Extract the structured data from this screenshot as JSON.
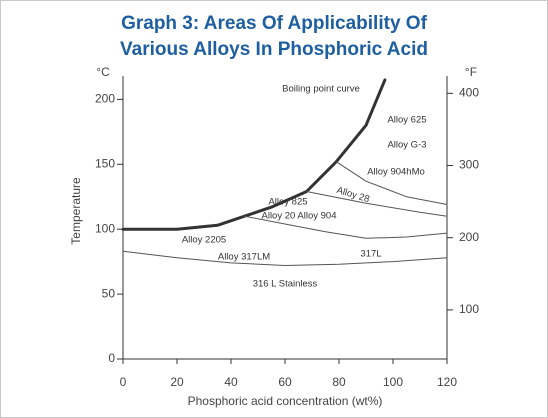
{
  "chart_data": {
    "type": "line",
    "title": "Graph 3: Areas Of Applicability Of Various Alloys In Phosphoric Acid",
    "xlabel": "Phosphoric acid concentration (wt%)",
    "ylabel": "Temperature",
    "y_unit": "°C",
    "y2_unit": "°F",
    "xlim": [
      0,
      120
    ],
    "xticks": [
      0,
      20,
      40,
      60,
      80,
      100,
      120
    ],
    "ylim": [
      0,
      218
    ],
    "yticks": [
      0,
      50,
      100,
      150,
      200
    ],
    "y2lim": [
      32,
      424
    ],
    "y2ticks": [
      100,
      200,
      300,
      400
    ],
    "series": [
      {
        "color": "#333333",
        "line_width": 3,
        "x": [
          0,
          20,
          35,
          45,
          55,
          68,
          79,
          90,
          97
        ],
        "values": [
          100,
          100,
          103,
          110,
          117,
          129,
          152,
          180,
          215
        ]
      },
      {
        "color": "#555555",
        "line_width": 1,
        "x": [
          68,
          90,
          110,
          120
        ],
        "values": [
          129,
          120,
          113,
          110
        ]
      },
      {
        "color": "#555555",
        "line_width": 1,
        "x": [
          79,
          90,
          105,
          120
        ],
        "values": [
          152,
          137,
          125,
          119
        ]
      },
      {
        "color": "#555555",
        "line_width": 1,
        "x": [
          45,
          60,
          75,
          90,
          105,
          120
        ],
        "values": [
          110,
          104,
          98,
          93,
          94,
          97
        ]
      },
      {
        "color": "#555555",
        "line_width": 1,
        "x": [
          0,
          20,
          40,
          60,
          80,
          100,
          120
        ],
        "values": [
          83,
          78,
          74,
          72,
          73,
          75,
          78
        ]
      }
    ],
    "annotations": [
      "Boiling point curve",
      "Alloy 625",
      "Alloy G-3",
      "Alloy 904hMo",
      "Alloy 28",
      "Alloy 825",
      "Alloy 20 Alloy 904",
      "Alloy 2205",
      "Alloy 317LM",
      "317L",
      "316 L Stainless"
    ]
  }
}
